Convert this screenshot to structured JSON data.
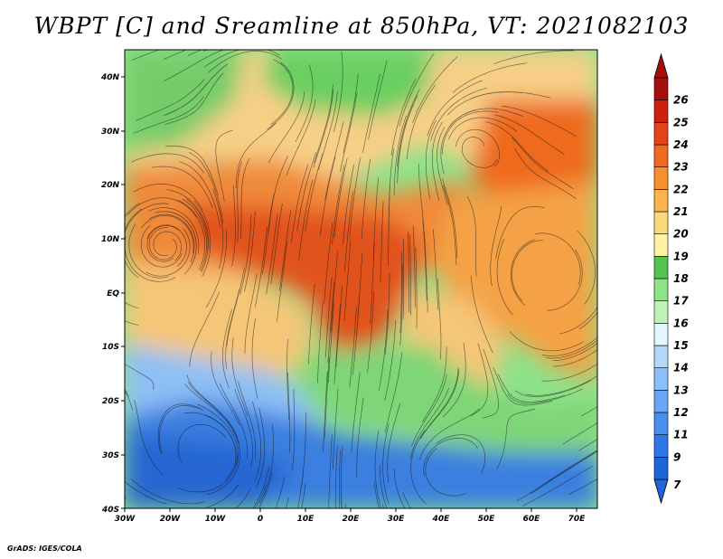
{
  "title": "WBPT [C] and Sreamline at 850hPa, VT: 2021082103",
  "credit": "GrADS: IGES/COLA",
  "map": {
    "lon_ticks": [
      "30W",
      "20W",
      "10W",
      "0",
      "10E",
      "20E",
      "30E",
      "40E",
      "50E",
      "60E",
      "70E"
    ],
    "lat_ticks": [
      "40N",
      "30N",
      "20N",
      "10N",
      "EQ",
      "10S",
      "20S",
      "30S",
      "40S"
    ],
    "lon_range": [
      -30,
      75
    ],
    "lat_range": [
      -40,
      45
    ]
  },
  "colorbar": {
    "labels": [
      "7",
      "9",
      "11",
      "12",
      "13",
      "14",
      "15",
      "16",
      "17",
      "18",
      "19",
      "20",
      "21",
      "22",
      "23",
      "24",
      "25",
      "26"
    ],
    "colors": [
      "#1f64d8",
      "#2d77e6",
      "#4a8ff0",
      "#6aa6f4",
      "#8cbff7",
      "#b4d8fa",
      "#e6f6ff",
      "#bff2b8",
      "#8ee28a",
      "#54c450",
      "#fff2a3",
      "#fbd97a",
      "#f7b450",
      "#f5902e",
      "#ef6a1e",
      "#e4441a",
      "#cc1f10",
      "#a50f0a"
    ]
  },
  "regions": [
    {
      "name": "cold-southern-ocean",
      "color": "#3a7fe0"
    },
    {
      "name": "cool-south-atlantic",
      "color": "#8ec0f5"
    },
    {
      "name": "green-southern-africa",
      "color": "#7fd677"
    },
    {
      "name": "warm-sahel",
      "color": "#f08a3a"
    },
    {
      "name": "hot-central-africa",
      "color": "#e1531e"
    },
    {
      "name": "sahara-tan",
      "color": "#f7cf86"
    },
    {
      "name": "mediterranean-green",
      "color": "#6bcf62"
    },
    {
      "name": "arabian-sea-orange",
      "color": "#f4a245"
    },
    {
      "name": "indian-ocean-tan",
      "color": "#f5c677"
    }
  ]
}
